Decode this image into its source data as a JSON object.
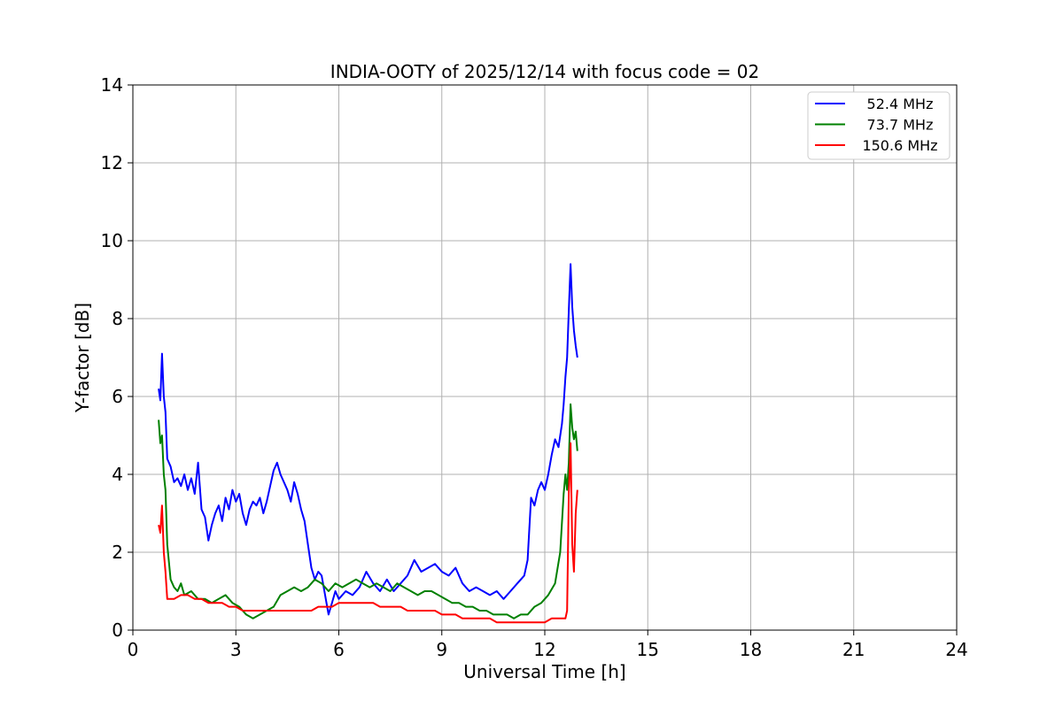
{
  "chart_data": {
    "type": "line",
    "title": "INDIA-OOTY of 2025/12/14 with focus code = 02",
    "xlabel": "Universal Time [h]",
    "ylabel": "Y-factor [dB]",
    "xlim": [
      0,
      24
    ],
    "ylim": [
      0,
      14
    ],
    "xticks": [
      0,
      3,
      6,
      9,
      12,
      15,
      18,
      21,
      24
    ],
    "yticks": [
      0,
      2,
      4,
      6,
      8,
      10,
      12,
      14
    ],
    "xtick_labels": [
      "0",
      "3",
      "6",
      "9",
      "12",
      "15",
      "18",
      "21",
      "24"
    ],
    "ytick_labels": [
      "0",
      "2",
      "4",
      "6",
      "8",
      "10",
      "12",
      "14"
    ],
    "grid": true,
    "legend_position": "top-right",
    "series": [
      {
        "name": "52.4 MHz",
        "color": "#0000ff",
        "points": [
          [
            0.75,
            6.2
          ],
          [
            0.8,
            5.9
          ],
          [
            0.85,
            7.1
          ],
          [
            0.9,
            6.0
          ],
          [
            0.95,
            5.6
          ],
          [
            1.0,
            4.4
          ],
          [
            1.1,
            4.2
          ],
          [
            1.2,
            3.8
          ],
          [
            1.3,
            3.9
          ],
          [
            1.4,
            3.7
          ],
          [
            1.5,
            4.0
          ],
          [
            1.6,
            3.6
          ],
          [
            1.7,
            3.9
          ],
          [
            1.8,
            3.5
          ],
          [
            1.9,
            4.3
          ],
          [
            2.0,
            3.1
          ],
          [
            2.1,
            2.9
          ],
          [
            2.2,
            2.3
          ],
          [
            2.3,
            2.7
          ],
          [
            2.4,
            3.0
          ],
          [
            2.5,
            3.2
          ],
          [
            2.6,
            2.8
          ],
          [
            2.7,
            3.4
          ],
          [
            2.8,
            3.1
          ],
          [
            2.9,
            3.6
          ],
          [
            3.0,
            3.3
          ],
          [
            3.1,
            3.5
          ],
          [
            3.2,
            3.0
          ],
          [
            3.3,
            2.7
          ],
          [
            3.4,
            3.1
          ],
          [
            3.5,
            3.3
          ],
          [
            3.6,
            3.2
          ],
          [
            3.7,
            3.4
          ],
          [
            3.8,
            3.0
          ],
          [
            3.9,
            3.3
          ],
          [
            4.0,
            3.7
          ],
          [
            4.1,
            4.1
          ],
          [
            4.2,
            4.3
          ],
          [
            4.3,
            4.0
          ],
          [
            4.4,
            3.8
          ],
          [
            4.5,
            3.6
          ],
          [
            4.6,
            3.3
          ],
          [
            4.7,
            3.8
          ],
          [
            4.8,
            3.5
          ],
          [
            4.9,
            3.1
          ],
          [
            5.0,
            2.8
          ],
          [
            5.1,
            2.2
          ],
          [
            5.2,
            1.6
          ],
          [
            5.3,
            1.3
          ],
          [
            5.4,
            1.5
          ],
          [
            5.5,
            1.4
          ],
          [
            5.6,
            0.9
          ],
          [
            5.7,
            0.4
          ],
          [
            5.8,
            0.7
          ],
          [
            5.9,
            1.0
          ],
          [
            6.0,
            0.8
          ],
          [
            6.2,
            1.0
          ],
          [
            6.4,
            0.9
          ],
          [
            6.6,
            1.1
          ],
          [
            6.8,
            1.5
          ],
          [
            7.0,
            1.2
          ],
          [
            7.2,
            1.0
          ],
          [
            7.4,
            1.3
          ],
          [
            7.6,
            1.0
          ],
          [
            7.8,
            1.2
          ],
          [
            8.0,
            1.4
          ],
          [
            8.2,
            1.8
          ],
          [
            8.4,
            1.5
          ],
          [
            8.6,
            1.6
          ],
          [
            8.8,
            1.7
          ],
          [
            9.0,
            1.5
          ],
          [
            9.2,
            1.4
          ],
          [
            9.4,
            1.6
          ],
          [
            9.6,
            1.2
          ],
          [
            9.8,
            1.0
          ],
          [
            10.0,
            1.1
          ],
          [
            10.2,
            1.0
          ],
          [
            10.4,
            0.9
          ],
          [
            10.6,
            1.0
          ],
          [
            10.8,
            0.8
          ],
          [
            11.0,
            1.0
          ],
          [
            11.2,
            1.2
          ],
          [
            11.4,
            1.4
          ],
          [
            11.5,
            1.8
          ],
          [
            11.6,
            3.4
          ],
          [
            11.7,
            3.2
          ],
          [
            11.8,
            3.6
          ],
          [
            11.9,
            3.8
          ],
          [
            12.0,
            3.6
          ],
          [
            12.1,
            4.0
          ],
          [
            12.2,
            4.5
          ],
          [
            12.3,
            4.9
          ],
          [
            12.4,
            4.7
          ],
          [
            12.5,
            5.3
          ],
          [
            12.55,
            5.8
          ],
          [
            12.6,
            6.5
          ],
          [
            12.65,
            7.0
          ],
          [
            12.7,
            8.2
          ],
          [
            12.75,
            9.4
          ],
          [
            12.8,
            8.3
          ],
          [
            12.85,
            7.7
          ],
          [
            12.9,
            7.3
          ],
          [
            12.95,
            7.0
          ]
        ]
      },
      {
        "name": "73.7 MHz",
        "color": "#008000",
        "points": [
          [
            0.75,
            5.4
          ],
          [
            0.8,
            4.8
          ],
          [
            0.85,
            5.0
          ],
          [
            0.9,
            4.0
          ],
          [
            0.95,
            3.6
          ],
          [
            1.0,
            2.2
          ],
          [
            1.1,
            1.3
          ],
          [
            1.2,
            1.1
          ],
          [
            1.3,
            1.0
          ],
          [
            1.4,
            1.2
          ],
          [
            1.5,
            0.9
          ],
          [
            1.7,
            1.0
          ],
          [
            1.9,
            0.8
          ],
          [
            2.1,
            0.8
          ],
          [
            2.3,
            0.7
          ],
          [
            2.5,
            0.8
          ],
          [
            2.7,
            0.9
          ],
          [
            2.9,
            0.7
          ],
          [
            3.1,
            0.6
          ],
          [
            3.3,
            0.4
          ],
          [
            3.5,
            0.3
          ],
          [
            3.7,
            0.4
          ],
          [
            3.9,
            0.5
          ],
          [
            4.1,
            0.6
          ],
          [
            4.3,
            0.9
          ],
          [
            4.5,
            1.0
          ],
          [
            4.7,
            1.1
          ],
          [
            4.9,
            1.0
          ],
          [
            5.1,
            1.1
          ],
          [
            5.3,
            1.3
          ],
          [
            5.5,
            1.2
          ],
          [
            5.7,
            1.0
          ],
          [
            5.9,
            1.2
          ],
          [
            6.1,
            1.1
          ],
          [
            6.3,
            1.2
          ],
          [
            6.5,
            1.3
          ],
          [
            6.7,
            1.2
          ],
          [
            6.9,
            1.1
          ],
          [
            7.1,
            1.2
          ],
          [
            7.3,
            1.1
          ],
          [
            7.5,
            1.0
          ],
          [
            7.7,
            1.2
          ],
          [
            7.9,
            1.1
          ],
          [
            8.1,
            1.0
          ],
          [
            8.3,
            0.9
          ],
          [
            8.5,
            1.0
          ],
          [
            8.7,
            1.0
          ],
          [
            8.9,
            0.9
          ],
          [
            9.1,
            0.8
          ],
          [
            9.3,
            0.7
          ],
          [
            9.5,
            0.7
          ],
          [
            9.7,
            0.6
          ],
          [
            9.9,
            0.6
          ],
          [
            10.1,
            0.5
          ],
          [
            10.3,
            0.5
          ],
          [
            10.5,
            0.4
          ],
          [
            10.7,
            0.4
          ],
          [
            10.9,
            0.4
          ],
          [
            11.1,
            0.3
          ],
          [
            11.3,
            0.4
          ],
          [
            11.5,
            0.4
          ],
          [
            11.7,
            0.6
          ],
          [
            11.9,
            0.7
          ],
          [
            12.1,
            0.9
          ],
          [
            12.3,
            1.2
          ],
          [
            12.45,
            2.0
          ],
          [
            12.55,
            3.5
          ],
          [
            12.6,
            4.0
          ],
          [
            12.65,
            3.6
          ],
          [
            12.7,
            4.3
          ],
          [
            12.75,
            5.8
          ],
          [
            12.8,
            5.2
          ],
          [
            12.85,
            4.9
          ],
          [
            12.9,
            5.1
          ],
          [
            12.95,
            4.6
          ]
        ]
      },
      {
        "name": "150.6 MHz",
        "color": "#ff0000",
        "points": [
          [
            0.75,
            2.7
          ],
          [
            0.8,
            2.5
          ],
          [
            0.85,
            3.2
          ],
          [
            0.9,
            2.0
          ],
          [
            0.95,
            1.5
          ],
          [
            1.0,
            0.8
          ],
          [
            1.2,
            0.8
          ],
          [
            1.4,
            0.9
          ],
          [
            1.6,
            0.9
          ],
          [
            1.8,
            0.8
          ],
          [
            2.0,
            0.8
          ],
          [
            2.2,
            0.7
          ],
          [
            2.4,
            0.7
          ],
          [
            2.6,
            0.7
          ],
          [
            2.8,
            0.6
          ],
          [
            3.0,
            0.6
          ],
          [
            3.2,
            0.5
          ],
          [
            3.4,
            0.5
          ],
          [
            3.6,
            0.5
          ],
          [
            3.8,
            0.5
          ],
          [
            4.0,
            0.5
          ],
          [
            4.2,
            0.5
          ],
          [
            4.4,
            0.5
          ],
          [
            4.6,
            0.5
          ],
          [
            4.8,
            0.5
          ],
          [
            5.0,
            0.5
          ],
          [
            5.2,
            0.5
          ],
          [
            5.4,
            0.6
          ],
          [
            5.6,
            0.6
          ],
          [
            5.8,
            0.6
          ],
          [
            6.0,
            0.7
          ],
          [
            6.2,
            0.7
          ],
          [
            6.4,
            0.7
          ],
          [
            6.6,
            0.7
          ],
          [
            6.8,
            0.7
          ],
          [
            7.0,
            0.7
          ],
          [
            7.2,
            0.6
          ],
          [
            7.4,
            0.6
          ],
          [
            7.6,
            0.6
          ],
          [
            7.8,
            0.6
          ],
          [
            8.0,
            0.5
          ],
          [
            8.2,
            0.5
          ],
          [
            8.4,
            0.5
          ],
          [
            8.6,
            0.5
          ],
          [
            8.8,
            0.5
          ],
          [
            9.0,
            0.4
          ],
          [
            9.2,
            0.4
          ],
          [
            9.4,
            0.4
          ],
          [
            9.6,
            0.3
          ],
          [
            9.8,
            0.3
          ],
          [
            10.0,
            0.3
          ],
          [
            10.2,
            0.3
          ],
          [
            10.4,
            0.3
          ],
          [
            10.6,
            0.2
          ],
          [
            10.8,
            0.2
          ],
          [
            11.0,
            0.2
          ],
          [
            11.2,
            0.2
          ],
          [
            11.4,
            0.2
          ],
          [
            11.6,
            0.2
          ],
          [
            11.8,
            0.2
          ],
          [
            12.0,
            0.2
          ],
          [
            12.2,
            0.3
          ],
          [
            12.4,
            0.3
          ],
          [
            12.6,
            0.3
          ],
          [
            12.65,
            0.5
          ],
          [
            12.7,
            3.5
          ],
          [
            12.75,
            4.8
          ],
          [
            12.8,
            2.2
          ],
          [
            12.85,
            1.5
          ],
          [
            12.9,
            3.0
          ],
          [
            12.95,
            3.6
          ]
        ]
      }
    ]
  }
}
